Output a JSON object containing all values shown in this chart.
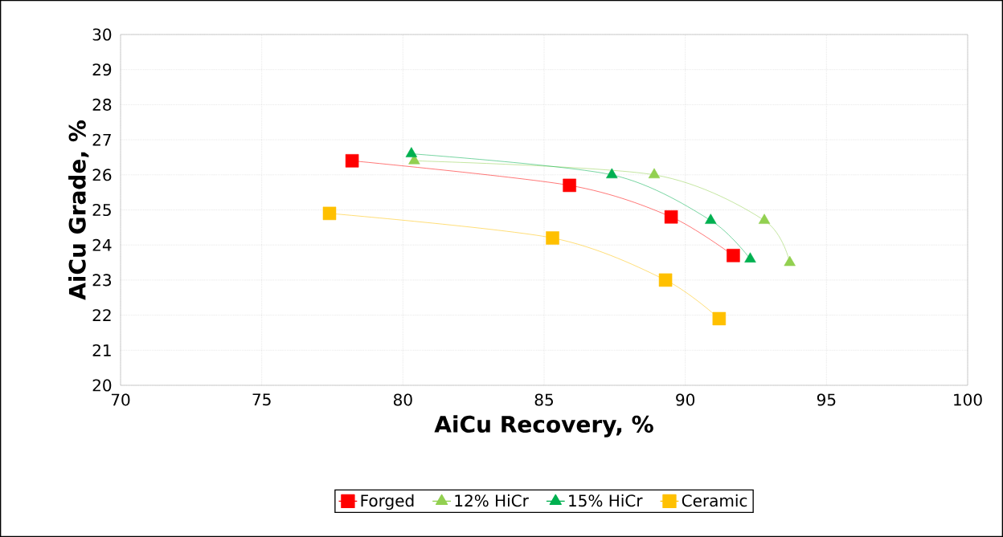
{
  "chart_data": {
    "type": "line",
    "xlabel": "AiCu Recovery, %",
    "ylabel": "AiCu Grade, %",
    "xlim": [
      70,
      100
    ],
    "ylim": [
      20,
      30
    ],
    "xticks": [
      70,
      75,
      80,
      85,
      90,
      95,
      100
    ],
    "yticks": [
      20,
      21,
      22,
      23,
      24,
      25,
      26,
      27,
      28,
      29,
      30
    ],
    "grid": true,
    "legend": "bottom",
    "line_style": "solid",
    "series": [
      {
        "name": "Forged",
        "color": "#ff0000",
        "marker": "square",
        "x": [
          78.2,
          85.9,
          89.5,
          91.7
        ],
        "values": [
          26.4,
          25.7,
          24.8,
          23.7
        ]
      },
      {
        "name": "12% HiCr",
        "color": "#92d050",
        "marker": "triangle",
        "x": [
          80.4,
          88.9,
          92.8,
          93.7
        ],
        "values": [
          26.4,
          26.0,
          24.7,
          23.5
        ]
      },
      {
        "name": "15% HiCr",
        "color": "#00b050",
        "marker": "triangle",
        "x": [
          80.3,
          87.4,
          90.9,
          92.3
        ],
        "values": [
          26.6,
          26.0,
          24.7,
          23.6
        ]
      },
      {
        "name": "Ceramic",
        "color": "#ffc000",
        "marker": "square",
        "x": [
          77.4,
          85.3,
          89.3,
          91.2
        ],
        "values": [
          24.9,
          24.2,
          23.0,
          21.9
        ]
      }
    ]
  }
}
